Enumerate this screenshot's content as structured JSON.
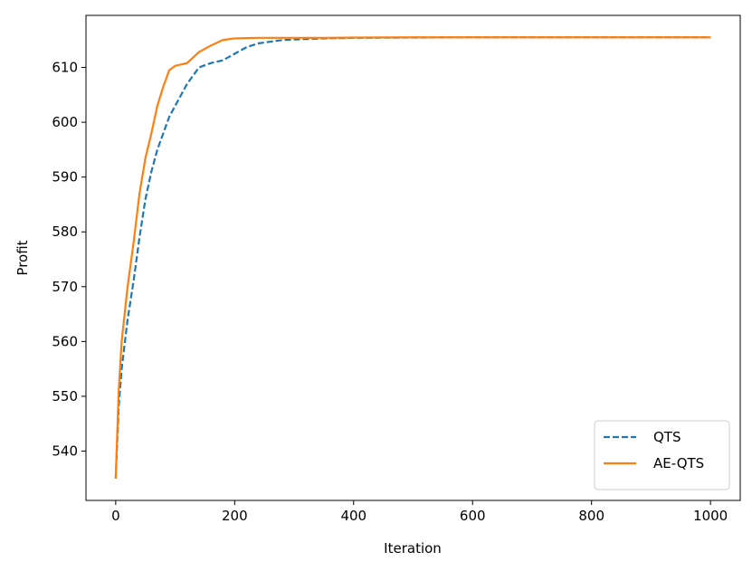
{
  "chart_data": {
    "type": "line",
    "x_label": "Iteration",
    "y_label": "Profit",
    "x": [
      0,
      5,
      10,
      20,
      30,
      40,
      50,
      60,
      70,
      80,
      90,
      100,
      120,
      140,
      160,
      180,
      200,
      220,
      240,
      260,
      280,
      300,
      350,
      400,
      500,
      600,
      700,
      800,
      900,
      1000
    ],
    "series": [
      {
        "name": "QTS",
        "color": "#1f77b4",
        "linestyle": "dashed",
        "values": [
          535,
          548,
          555,
          564,
          571,
          579,
          586,
          591,
          595,
          598,
          601,
          603,
          607,
          610,
          610.8,
          611.3,
          612.5,
          613.7,
          614.4,
          614.7,
          615,
          615.1,
          615.3,
          615.4,
          615.45,
          615.5,
          615.5,
          615.5,
          615.5,
          615.5
        ]
      },
      {
        "name": "AE-QTS",
        "color": "#ff7f0e",
        "linestyle": "solid",
        "values": [
          535,
          551,
          560,
          570,
          578,
          587,
          593.5,
          598,
          603,
          606.5,
          609.5,
          610.3,
          610.8,
          612.8,
          614,
          615,
          615.3,
          615.35,
          615.4,
          615.4,
          615.4,
          615.4,
          615.4,
          615.45,
          615.5,
          615.5,
          615.5,
          615.5,
          615.5,
          615.5
        ]
      }
    ],
    "xlim": [
      -50,
      1050
    ],
    "ylim": [
      531,
      619.5
    ],
    "xticks": [
      0,
      200,
      400,
      600,
      800,
      1000
    ],
    "yticks": [
      540,
      550,
      560,
      570,
      580,
      590,
      600,
      610
    ],
    "legend": "lower right"
  }
}
